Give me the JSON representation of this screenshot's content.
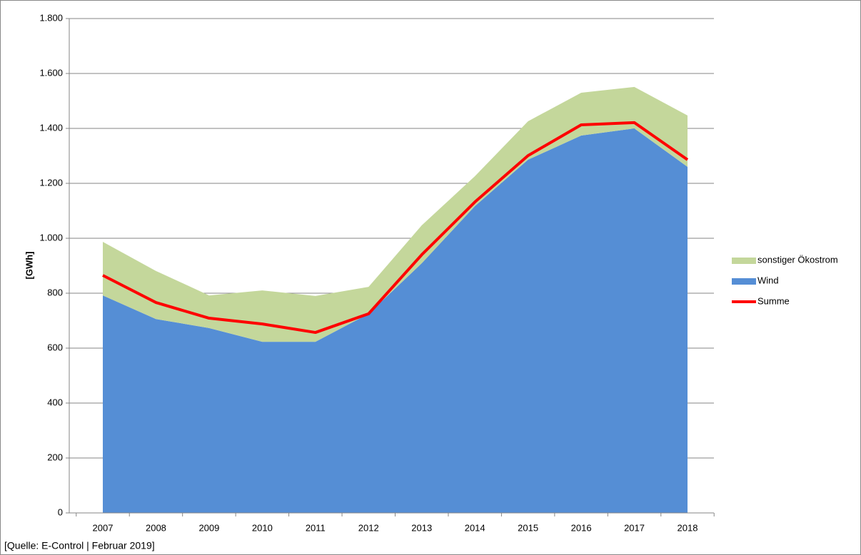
{
  "chart_data": {
    "type": "stacked-area-line",
    "y_label": "[GWh]",
    "source": "[Quelle: E-Control | Februar 2019]",
    "categories": [
      "2007",
      "2008",
      "2009",
      "2010",
      "2011",
      "2012",
      "2013",
      "2014",
      "2015",
      "2016",
      "2017",
      "2018"
    ],
    "series": [
      {
        "name": "sonstiger Ökostrom",
        "color": "#c4d79b",
        "kind": "area",
        "values": [
          195,
          175,
          119,
          187,
          167,
          98,
          138,
          109,
          140,
          156,
          151,
          187
        ]
      },
      {
        "name": "Wind",
        "color": "#558ed5",
        "kind": "area",
        "values": [
          792,
          706,
          673,
          623,
          623,
          725,
          909,
          1117,
          1286,
          1374,
          1400,
          1260
        ]
      },
      {
        "name": "Summe",
        "color": "#ff0000",
        "kind": "line",
        "values": [
          865,
          766,
          709,
          688,
          657,
          725,
          940,
          1132,
          1301,
          1413,
          1421,
          1286
        ]
      }
    ],
    "ylim": [
      0,
      1800
    ],
    "yticks": [
      0,
      200,
      400,
      600,
      800,
      {
        "value": 1000,
        "label": "1.000"
      },
      {
        "value": 1200,
        "label": "1.200"
      },
      {
        "value": 1400,
        "label": "1.400"
      },
      {
        "value": 1600,
        "label": "1.600"
      },
      {
        "value": 1800,
        "label": "1.800"
      }
    ],
    "grid": true,
    "legend": "right"
  }
}
